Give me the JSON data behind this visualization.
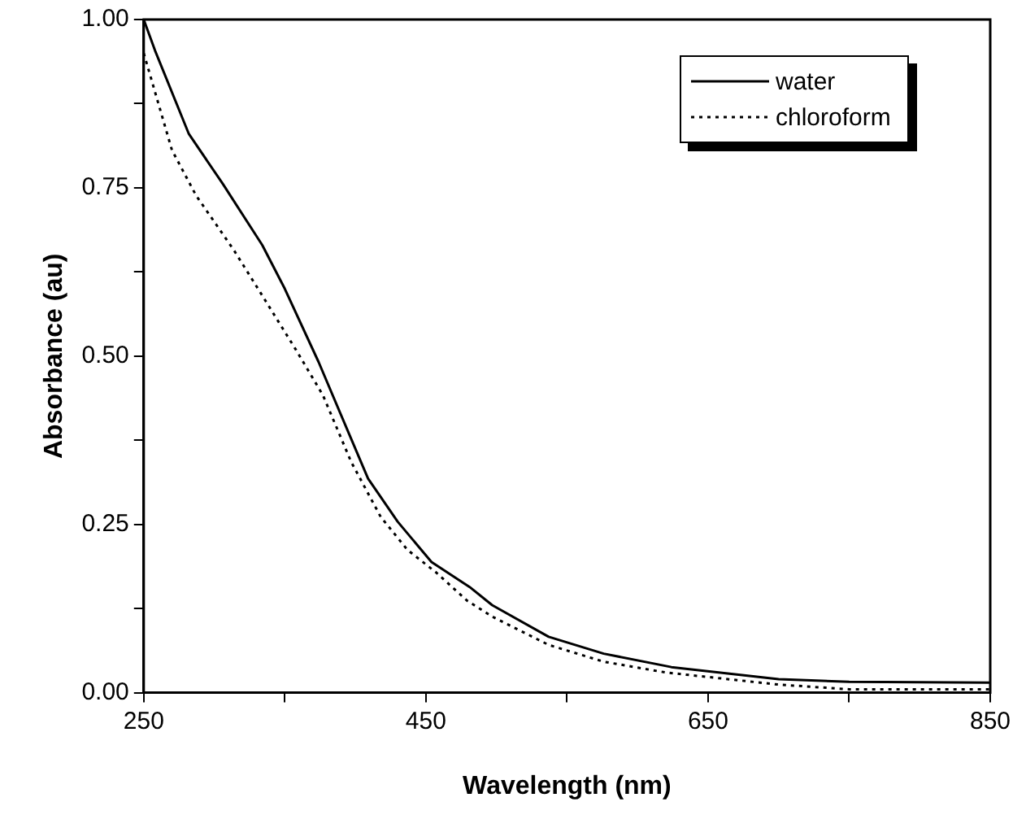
{
  "chart_data": {
    "type": "line",
    "xlabel": "Wavelength (nm)",
    "ylabel": "Absorbance (au)",
    "xlim": [
      250,
      850
    ],
    "ylim": [
      0,
      1
    ],
    "xticks": [
      250,
      {
        "value": 350,
        "label": null
      },
      450,
      {
        "value": 550,
        "label": null
      },
      650,
      {
        "value": 750,
        "label": null
      },
      850
    ],
    "yticks": [
      {
        "value": 0,
        "label": "0.00"
      },
      {
        "value": 0.125,
        "label": null
      },
      {
        "value": 0.25,
        "label": "0.25"
      },
      {
        "value": 0.375,
        "label": null
      },
      {
        "value": 0.5,
        "label": "0.50"
      },
      {
        "value": 0.625,
        "label": null
      },
      {
        "value": 0.75,
        "label": "0.75"
      },
      {
        "value": 0.875,
        "label": null
      },
      {
        "value": 1,
        "label": "1.00"
      }
    ],
    "grid": false,
    "legend": "top right",
    "marker": "none",
    "series": [
      {
        "name": "water",
        "color": "#000000",
        "line_style": "solid",
        "x": [
          250,
          258,
          282,
          306,
          334,
          350,
          374,
          394,
          409,
          430,
          454,
          481,
          497,
          537,
          576,
          624,
          700,
          750,
          850
        ],
        "values": [
          1.0,
          0.954,
          0.83,
          0.756,
          0.665,
          0.6,
          0.491,
          0.392,
          0.318,
          0.254,
          0.194,
          0.157,
          0.13,
          0.083,
          0.058,
          0.038,
          0.02,
          0.016,
          0.015
        ]
      },
      {
        "name": "chloroform",
        "color": "#000000",
        "line_style": "dotted",
        "x": [
          250,
          270,
          287,
          314,
          334,
          358,
          377,
          397,
          418,
          437,
          457,
          479,
          497,
          537,
          576,
          620,
          700,
          750,
          850
        ],
        "values": [
          0.95,
          0.806,
          0.739,
          0.657,
          0.59,
          0.509,
          0.442,
          0.343,
          0.261,
          0.212,
          0.179,
          0.137,
          0.113,
          0.071,
          0.046,
          0.03,
          0.012,
          0.005,
          0.005
        ]
      }
    ]
  }
}
